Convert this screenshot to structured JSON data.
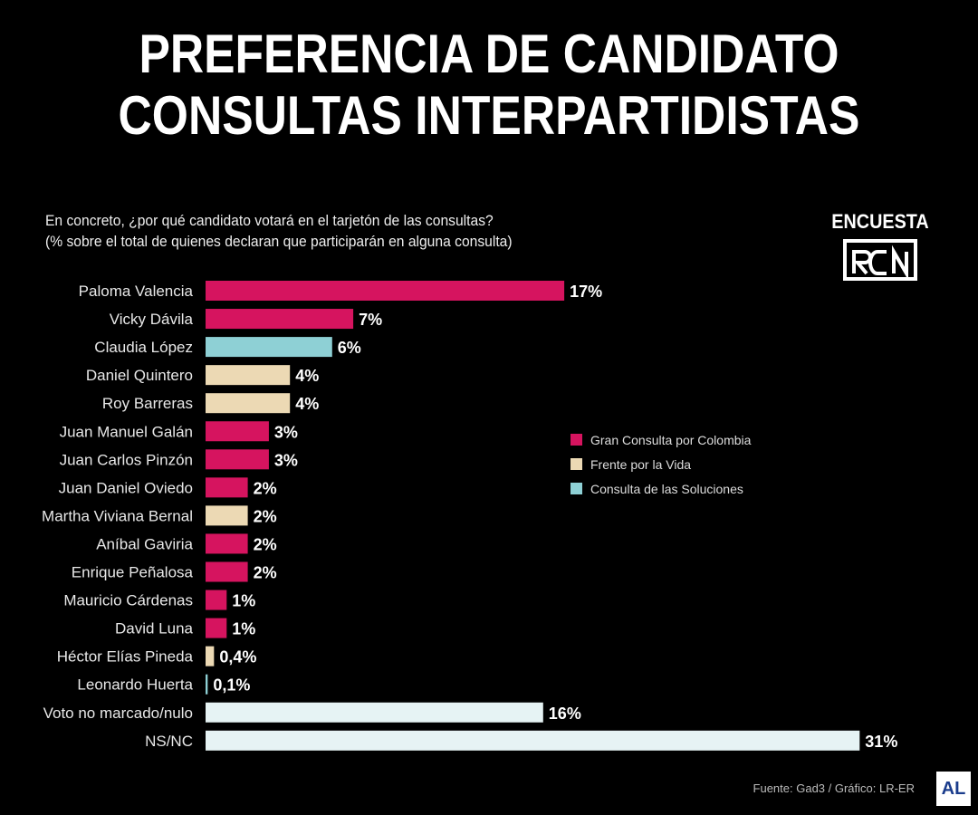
{
  "title_lines": [
    "PREFERENCIA DE CANDIDATO",
    "CONSULTAS INTERPARTIDISTAS"
  ],
  "subtitle_lines": [
    "En concreto, ¿por qué candidato votará en el tarjetón de las consultas?",
    "(% sobre el total de quienes declaran que participarán en alguna consulta)"
  ],
  "logo": {
    "label": "ENCUESTA",
    "icon": "rcn-logo"
  },
  "source": "Fuente: Gad3 / Gráfico: LR-ER",
  "corner_logo": {
    "text": "AL"
  },
  "colors": {
    "gran_consulta": "#d6145f",
    "frente_vida": "#ecd9b4",
    "soluciones": "#8ed0d5",
    "other": "#e6f3f4"
  },
  "chart_data": {
    "type": "bar",
    "orientation": "horizontal",
    "title": "PREFERENCIA DE CANDIDATO CONSULTAS INTERPARTIDISTAS",
    "xlabel": "",
    "ylabel": "",
    "xlim": [
      0,
      31
    ],
    "grid": false,
    "legend": {
      "placement": "center-right",
      "entries": [
        {
          "name": "Gran Consulta por Colombia",
          "color": "#d6145f"
        },
        {
          "name": "Frente por la Vida",
          "color": "#ecd9b4"
        },
        {
          "name": "Consulta de las Soluciones",
          "color": "#8ed0d5"
        }
      ]
    },
    "categories": [
      "Paloma Valencia",
      "Vicky Dávila",
      "Claudia López",
      "Daniel Quintero",
      "Roy Barreras",
      "Juan Manuel Galán",
      "Juan Carlos Pinzón",
      "Juan Daniel Oviedo",
      "Martha Viviana Bernal",
      "Aníbal Gaviria",
      "Enrique Peñalosa",
      "Mauricio Cárdenas",
      "David Luna",
      "Héctor Elías Pineda",
      "Leonardo Huerta",
      "Voto no marcado/nulo",
      "NS/NC"
    ],
    "values": [
      17,
      7,
      6,
      4,
      4,
      3,
      3,
      2,
      2,
      2,
      2,
      1,
      1,
      0.4,
      0.1,
      16,
      31
    ],
    "value_labels": [
      "17%",
      "7%",
      "6%",
      "4%",
      "4%",
      "3%",
      "3%",
      "2%",
      "2%",
      "2%",
      "2%",
      "1%",
      "1%",
      "0,4%",
      "0,1%",
      "16%",
      "31%"
    ],
    "bar_colors": [
      "#d6145f",
      "#d6145f",
      "#8ed0d5",
      "#ecd9b4",
      "#ecd9b4",
      "#d6145f",
      "#d6145f",
      "#d6145f",
      "#ecd9b4",
      "#d6145f",
      "#d6145f",
      "#d6145f",
      "#d6145f",
      "#ecd9b4",
      "#8ed0d5",
      "#e6f3f4",
      "#e6f3f4"
    ]
  }
}
